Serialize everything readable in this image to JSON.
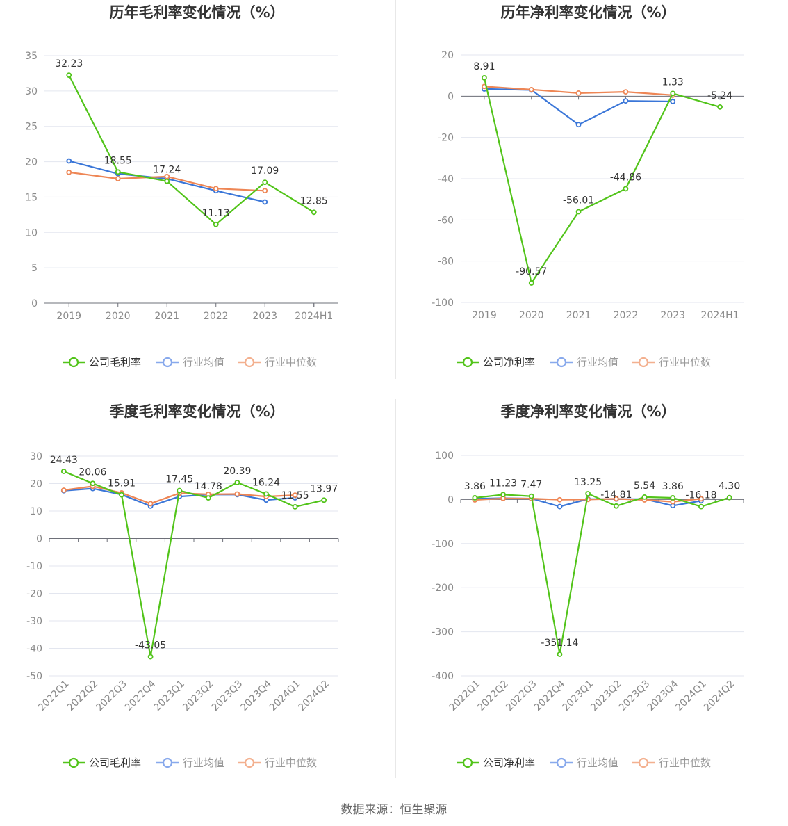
{
  "chart_data": [
    {
      "type": "line",
      "title": "历年毛利率变化情况（%）",
      "categories": [
        "2019",
        "2020",
        "2021",
        "2022",
        "2023",
        "2024H1"
      ],
      "ylim": [
        0,
        35
      ],
      "yticks": [
        0,
        5,
        10,
        15,
        20,
        25,
        30,
        35
      ],
      "series": [
        {
          "name": "公司毛利率",
          "color": "#52c41a",
          "values": [
            32.23,
            18.55,
            17.24,
            11.13,
            17.09,
            12.85
          ],
          "labels": [
            "32.23",
            "18.55",
            "17.24",
            "11.13",
            "17.09",
            "12.85"
          ]
        },
        {
          "name": "行业均值",
          "color": "#3a76d8",
          "values": [
            20.1,
            18.3,
            17.6,
            15.9,
            14.3,
            null
          ]
        },
        {
          "name": "行业中位数",
          "color": "#ee8655",
          "values": [
            18.5,
            17.6,
            17.9,
            16.2,
            15.9,
            null
          ]
        }
      ]
    },
    {
      "type": "line",
      "title": "历年净利率变化情况（%）",
      "categories": [
        "2019",
        "2020",
        "2021",
        "2022",
        "2023",
        "2024H1"
      ],
      "ylim": [
        -100,
        20
      ],
      "yticks": [
        -100,
        -80,
        -60,
        -40,
        -20,
        0,
        20
      ],
      "series": [
        {
          "name": "公司净利率",
          "color": "#52c41a",
          "values": [
            8.91,
            -90.57,
            -56.01,
            -44.86,
            1.33,
            -5.24
          ],
          "labels": [
            "8.91",
            "-90.57",
            "-56.01",
            "-44.86",
            "1.33",
            "-5.24"
          ]
        },
        {
          "name": "行业均值",
          "color": "#3a76d8",
          "values": [
            3.5,
            3.0,
            -13.8,
            -2.3,
            -2.6,
            null
          ]
        },
        {
          "name": "行业中位数",
          "color": "#ee8655",
          "values": [
            4.7,
            3.2,
            1.5,
            2.1,
            0.5,
            null
          ]
        }
      ]
    },
    {
      "type": "line",
      "title": "季度毛利率变化情况（%）",
      "categories": [
        "2022Q1",
        "2022Q2",
        "2022Q3",
        "2022Q4",
        "2023Q1",
        "2023Q2",
        "2023Q3",
        "2023Q4",
        "2024Q1",
        "2024Q2"
      ],
      "ylim": [
        -50,
        30
      ],
      "yticks": [
        -50,
        -40,
        -30,
        -20,
        -10,
        0,
        10,
        20,
        30
      ],
      "series": [
        {
          "name": "公司毛利率",
          "color": "#52c41a",
          "values": [
            24.43,
            20.06,
            15.91,
            -43.05,
            17.45,
            14.78,
            20.39,
            16.24,
            11.55,
            13.97
          ],
          "labels": [
            "24.43",
            "20.06",
            "15.91",
            "-43.05",
            "17.45",
            "14.78",
            "20.39",
            "16.24",
            "11.55",
            "13.97"
          ]
        },
        {
          "name": "行业均值",
          "color": "#3a76d8",
          "values": [
            17.4,
            18.2,
            16.0,
            11.8,
            15.3,
            16.0,
            16.0,
            14.0,
            14.8,
            null
          ]
        },
        {
          "name": "行业中位数",
          "color": "#ee8655",
          "values": [
            17.6,
            19.0,
            16.6,
            12.7,
            16.5,
            16.1,
            16.2,
            15.3,
            15.8,
            null
          ]
        }
      ]
    },
    {
      "type": "line",
      "title": "季度净利率变化情况（%）",
      "categories": [
        "2022Q1",
        "2022Q2",
        "2022Q3",
        "2022Q4",
        "2023Q1",
        "2023Q2",
        "2023Q3",
        "2023Q4",
        "2024Q1",
        "2024Q2"
      ],
      "ylim": [
        -400,
        100
      ],
      "yticks": [
        -400,
        -300,
        -200,
        -100,
        0,
        100
      ],
      "series": [
        {
          "name": "公司净利率",
          "color": "#52c41a",
          "values": [
            3.86,
            11.23,
            7.47,
            -351.14,
            13.25,
            -14.81,
            5.54,
            3.86,
            -16.18,
            4.3
          ],
          "labels": [
            "3.86",
            "11.23",
            "7.47",
            "-351.14",
            "13.25",
            "-14.81",
            "5.54",
            "3.86",
            "-16.18",
            "4.30"
          ]
        },
        {
          "name": "行业均值",
          "color": "#3a76d8",
          "values": [
            1.5,
            3.0,
            2.0,
            -16.0,
            1.0,
            1.0,
            1.0,
            -14.0,
            -3.0,
            null
          ]
        },
        {
          "name": "行业中位数",
          "color": "#ee8655",
          "values": [
            -1.0,
            2.5,
            2.0,
            -0.5,
            0.0,
            1.5,
            -1.0,
            -5.0,
            1.5,
            null
          ]
        }
      ]
    }
  ],
  "source": "数据来源：恒生聚源"
}
